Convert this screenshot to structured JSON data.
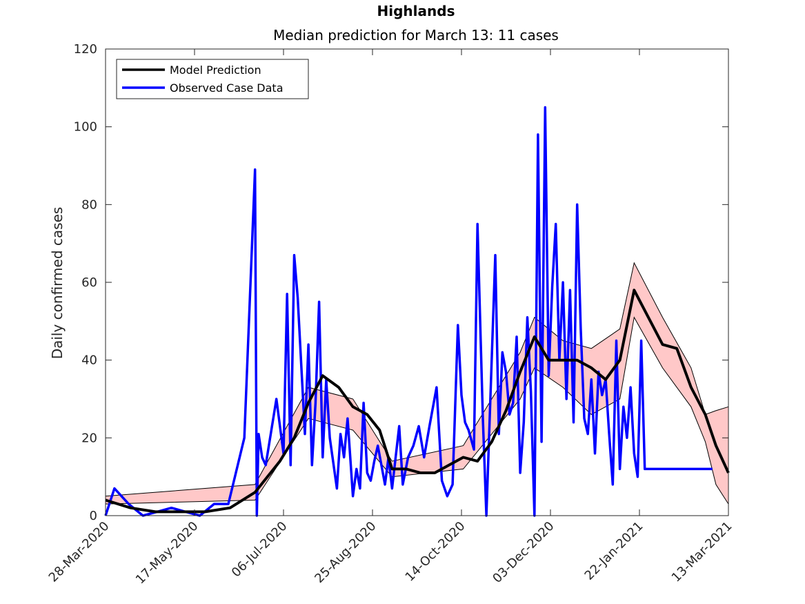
{
  "chart_data": {
    "type": "line",
    "title": "Highlands",
    "subtitle": "Median prediction for March 13: 11 cases",
    "xlabel": "",
    "ylabel": "Daily confirmed cases",
    "x_range": [
      "2020-03-28",
      "2021-03-13"
    ],
    "ylim": [
      0,
      120
    ],
    "yticks": [
      0,
      20,
      40,
      60,
      80,
      100,
      120
    ],
    "xticks": [
      "28-Mar-2020",
      "17-May-2020",
      "06-Jul-2020",
      "25-Aug-2020",
      "14-Oct-2020",
      "03-Dec-2020",
      "22-Jan-2021",
      "13-Mar-2021"
    ],
    "grid": false,
    "legend_position": "top-left",
    "colors": {
      "model": "#000000",
      "observed": "#0000ff",
      "band_fill": "#ffc8c8",
      "band_edge": "#000000"
    },
    "series": [
      {
        "name": "Model Prediction",
        "x": [
          "2020-03-28",
          "2020-04-11",
          "2020-04-25",
          "2020-05-09",
          "2020-05-23",
          "2020-06-06",
          "2020-06-20",
          "2020-07-04",
          "2020-07-12",
          "2020-07-20",
          "2020-07-28",
          "2020-08-06",
          "2020-08-14",
          "2020-08-22",
          "2020-08-29",
          "2020-09-05",
          "2020-09-13",
          "2020-09-21",
          "2020-09-29",
          "2020-10-07",
          "2020-10-15",
          "2020-10-23",
          "2020-10-31",
          "2020-11-08",
          "2020-11-16",
          "2020-11-24",
          "2020-12-02",
          "2020-12-10",
          "2020-12-18",
          "2020-12-26",
          "2021-01-03",
          "2021-01-11",
          "2021-01-19",
          "2021-01-27",
          "2021-02-04",
          "2021-02-12",
          "2021-02-20",
          "2021-02-28",
          "2021-03-06",
          "2021-03-13"
        ],
        "values": [
          4,
          2,
          1,
          1,
          1,
          2,
          6,
          14,
          20,
          29,
          36,
          33,
          28,
          26,
          22,
          12,
          12,
          11,
          11,
          13,
          15,
          14,
          19,
          27,
          37,
          46,
          40,
          40,
          40,
          38,
          35,
          40,
          58,
          51,
          44,
          43,
          33,
          26,
          18,
          11
        ]
      },
      {
        "name": "Observed Case Data",
        "x": [
          "2020-03-28",
          "2020-04-02",
          "2020-04-10",
          "2020-04-18",
          "2020-04-26",
          "2020-05-04",
          "2020-05-12",
          "2020-05-20",
          "2020-05-28",
          "2020-06-05",
          "2020-06-14",
          "2020-06-20",
          "2020-06-21",
          "2020-06-22",
          "2020-06-24",
          "2020-06-26",
          "2020-07-02",
          "2020-07-06",
          "2020-07-08",
          "2020-07-10",
          "2020-07-12",
          "2020-07-14",
          "2020-07-18",
          "2020-07-20",
          "2020-07-22",
          "2020-07-24",
          "2020-07-26",
          "2020-07-28",
          "2020-07-30",
          "2020-08-01",
          "2020-08-05",
          "2020-08-07",
          "2020-08-09",
          "2020-08-11",
          "2020-08-14",
          "2020-08-16",
          "2020-08-18",
          "2020-08-20",
          "2020-08-22",
          "2020-08-24",
          "2020-08-26",
          "2020-08-28",
          "2020-09-01",
          "2020-09-03",
          "2020-09-05",
          "2020-09-09",
          "2020-09-11",
          "2020-09-14",
          "2020-09-17",
          "2020-09-20",
          "2020-09-23",
          "2020-09-26",
          "2020-09-30",
          "2020-10-03",
          "2020-10-06",
          "2020-10-09",
          "2020-10-12",
          "2020-10-14",
          "2020-10-16",
          "2020-10-18",
          "2020-10-21",
          "2020-10-23",
          "2020-10-26",
          "2020-10-28",
          "2020-11-02",
          "2020-11-04",
          "2020-11-06",
          "2020-11-08",
          "2020-11-10",
          "2020-11-12",
          "2020-11-14",
          "2020-11-16",
          "2020-11-18",
          "2020-11-20",
          "2020-11-22",
          "2020-11-24",
          "2020-11-26",
          "2020-11-28",
          "2020-11-30",
          "2020-12-02",
          "2020-12-04",
          "2020-12-06",
          "2020-12-08",
          "2020-12-10",
          "2020-12-12",
          "2020-12-14",
          "2020-12-16",
          "2020-12-18",
          "2020-12-20",
          "2020-12-22",
          "2020-12-24",
          "2020-12-26",
          "2020-12-28",
          "2020-12-30",
          "2021-01-01",
          "2021-01-03",
          "2021-01-05",
          "2021-01-07",
          "2021-01-09",
          "2021-01-11",
          "2021-01-13",
          "2021-01-15",
          "2021-01-17",
          "2021-01-19",
          "2021-01-21",
          "2021-01-23",
          "2021-01-25",
          "2021-01-27",
          "2021-01-29",
          "2021-01-31",
          "2021-02-02",
          "2021-02-04",
          "2021-02-06",
          "2021-02-08",
          "2021-02-10",
          "2021-02-12",
          "2021-02-14",
          "2021-02-16",
          "2021-02-18",
          "2021-02-20",
          "2021-02-22",
          "2021-02-24",
          "2021-02-26",
          "2021-02-28",
          "2021-03-02",
          "2021-03-04"
        ],
        "values": [
          0,
          7,
          3,
          0,
          1,
          2,
          1,
          0,
          3,
          3,
          20,
          89,
          0,
          21,
          15,
          13,
          30,
          16,
          57,
          13,
          67,
          56,
          21,
          44,
          13,
          29,
          55,
          15,
          35,
          20,
          7,
          21,
          15,
          25,
          5,
          12,
          7,
          29,
          11,
          9,
          14,
          18,
          8,
          15,
          7,
          23,
          8,
          15,
          18,
          23,
          15,
          23,
          33,
          9,
          5,
          8,
          49,
          31,
          24,
          22,
          17,
          75,
          25,
          0,
          67,
          21,
          42,
          37,
          26,
          29,
          46,
          11,
          24,
          51,
          32,
          0,
          98,
          19,
          105,
          36,
          59,
          75,
          40,
          60,
          30,
          58,
          24,
          80,
          48,
          25,
          21,
          35,
          16,
          37,
          31,
          35,
          21,
          8,
          45,
          12,
          28,
          20,
          33,
          16,
          10,
          45,
          12,
          12,
          12,
          12,
          12,
          12,
          12,
          12,
          12,
          12,
          12,
          12,
          12,
          12,
          12,
          12,
          12,
          12,
          12,
          12
        ],
        "note_points": "observed values shown up to ~2021-03-03"
      }
    ],
    "uncertainty_band": {
      "x": [
        "2020-03-28",
        "2020-06-20",
        "2020-07-20",
        "2020-08-14",
        "2020-09-05",
        "2020-10-15",
        "2020-11-16",
        "2020-11-24",
        "2020-12-10",
        "2020-12-26",
        "2021-01-11",
        "2021-01-19",
        "2021-02-04",
        "2021-02-20",
        "2021-02-28",
        "2021-03-06",
        "2021-03-13"
      ],
      "lower": [
        3,
        4,
        25,
        22,
        10,
        12,
        30,
        38,
        33,
        26,
        30,
        51,
        38,
        28,
        19,
        8,
        3
      ],
      "upper": [
        5,
        8,
        33,
        30,
        14,
        18,
        42,
        51,
        45,
        43,
        48,
        65,
        51,
        38,
        26,
        27,
        28
      ]
    }
  }
}
